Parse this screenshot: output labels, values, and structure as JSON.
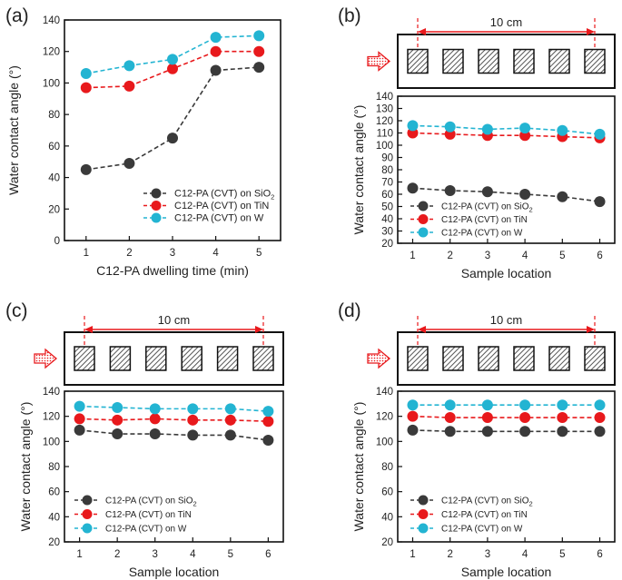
{
  "chart_data": [
    {
      "panel": "(a)",
      "type": "line",
      "xlabel": "C12-PA dwelling time (min)",
      "ylabel": "Water contact angle (°)",
      "x": [
        1,
        2,
        3,
        4,
        5
      ],
      "xlim": [
        0.5,
        5.5
      ],
      "xticks": [
        "1",
        "2",
        "3",
        "4",
        "5"
      ],
      "ylim": [
        0,
        140
      ],
      "yticks": [
        "0",
        "20",
        "40",
        "60",
        "80",
        "100",
        "120",
        "140"
      ],
      "legend_position": "lower-right",
      "series": [
        {
          "name": "C12-PA (CVT) on SiO",
          "sub": "2",
          "color": "#3a3a3a",
          "values": [
            45,
            49,
            65,
            108,
            110
          ]
        },
        {
          "name": "C12-PA (CVT) on TiN",
          "sub": "",
          "color": "#e8191c",
          "values": [
            97,
            98,
            109,
            120,
            120
          ]
        },
        {
          "name": "C12-PA (CVT) on W",
          "sub": "",
          "color": "#23b4d2",
          "values": [
            106,
            111,
            115,
            129,
            130
          ]
        }
      ]
    },
    {
      "panel": "(b)",
      "type": "line",
      "xlabel": "Sample location",
      "ylabel": "Water contact angle (°)",
      "x": [
        1,
        2,
        3,
        4,
        5,
        6
      ],
      "xlim": [
        0.6,
        6.4
      ],
      "xticks": [
        "1",
        "2",
        "3",
        "4",
        "5",
        "6"
      ],
      "ylim": [
        20,
        140
      ],
      "yticks": [
        "20",
        "30",
        "40",
        "50",
        "60",
        "70",
        "80",
        "90",
        "100",
        "110",
        "120",
        "130",
        "140"
      ],
      "legend_position": "lower-left",
      "diagram_label": "10 cm",
      "series": [
        {
          "name": "C12-PA (CVT) on SiO",
          "sub": "2",
          "color": "#3a3a3a",
          "values": [
            65,
            63,
            62,
            60,
            58,
            54
          ]
        },
        {
          "name": "C12-PA (CVT) on TiN",
          "sub": "",
          "color": "#e8191c",
          "values": [
            110,
            109,
            108,
            108,
            107,
            106
          ]
        },
        {
          "name": "C12-PA (CVT) on W",
          "sub": "",
          "color": "#23b4d2",
          "values": [
            116,
            115,
            113,
            114,
            112,
            109
          ]
        }
      ]
    },
    {
      "panel": "(c)",
      "type": "line",
      "xlabel": "Sample location",
      "ylabel": "Water contact angle (°)",
      "x": [
        1,
        2,
        3,
        4,
        5,
        6
      ],
      "xlim": [
        0.6,
        6.4
      ],
      "xticks": [
        "1",
        "2",
        "3",
        "4",
        "5",
        "6"
      ],
      "ylim": [
        20,
        140
      ],
      "yticks": [
        "20",
        "40",
        "60",
        "80",
        "100",
        "120",
        "140"
      ],
      "legend_position": "lower-left",
      "diagram_label": "10 cm",
      "series": [
        {
          "name": "C12-PA (CVT) on SiO",
          "sub": "2",
          "color": "#3a3a3a",
          "values": [
            109,
            106,
            106,
            105,
            105,
            101
          ]
        },
        {
          "name": "C12-PA (CVT) on TiN",
          "sub": "",
          "color": "#e8191c",
          "values": [
            118,
            117,
            118,
            117,
            117,
            116
          ]
        },
        {
          "name": "C12-PA (CVT) on W",
          "sub": "",
          "color": "#23b4d2",
          "values": [
            128,
            127,
            126,
            126,
            126,
            124
          ]
        }
      ]
    },
    {
      "panel": "(d)",
      "type": "line",
      "xlabel": "Sample location",
      "ylabel": "Water contact angle (°)",
      "x": [
        1,
        2,
        3,
        4,
        5,
        6
      ],
      "xlim": [
        0.6,
        6.4
      ],
      "xticks": [
        "1",
        "2",
        "3",
        "4",
        "5",
        "6"
      ],
      "ylim": [
        20,
        140
      ],
      "yticks": [
        "20",
        "40",
        "60",
        "80",
        "100",
        "120",
        "140"
      ],
      "legend_position": "lower-left",
      "diagram_label": "10 cm",
      "series": [
        {
          "name": "C12-PA (CVT) on SiO",
          "sub": "2",
          "color": "#3a3a3a",
          "values": [
            109,
            108,
            108,
            108,
            108,
            108
          ]
        },
        {
          "name": "C12-PA (CVT) on TiN",
          "sub": "",
          "color": "#e8191c",
          "values": [
            120,
            119,
            119,
            119,
            119,
            119
          ]
        },
        {
          "name": "C12-PA (CVT) on W",
          "sub": "",
          "color": "#23b4d2",
          "values": [
            129,
            129,
            129,
            129,
            129,
            129
          ]
        }
      ]
    }
  ]
}
